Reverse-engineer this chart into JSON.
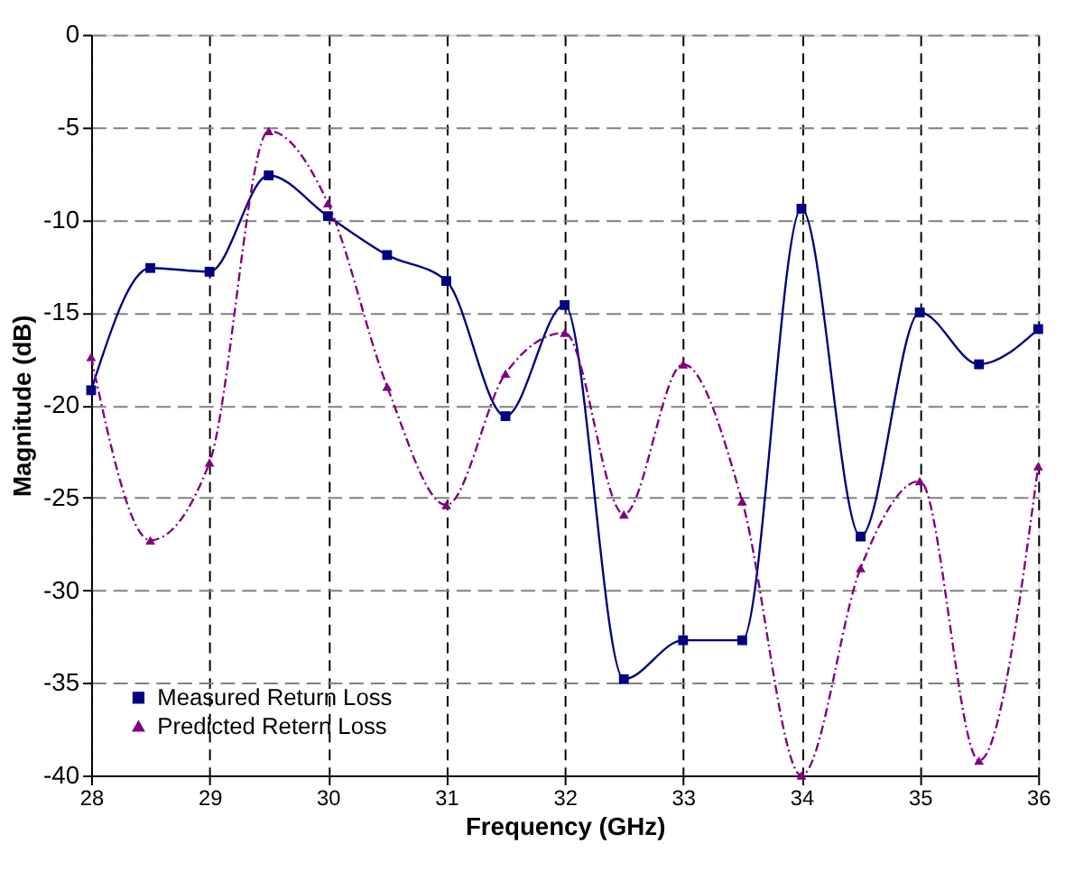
{
  "chart_data": {
    "type": "line",
    "xlabel": "Frequency (GHz)",
    "ylabel": "Magnitude (dB)",
    "x": [
      28,
      28.5,
      29,
      29.5,
      30,
      30.5,
      31,
      31.5,
      32,
      32.5,
      33,
      33.5,
      34,
      34.5,
      35,
      35.5,
      36
    ],
    "series": [
      {
        "name": "Measured Return Loss",
        "color": "#000080",
        "marker": "square",
        "line_style": "solid",
        "values": [
          -19.2,
          -12.6,
          -12.8,
          -7.6,
          -9.8,
          -11.9,
          -13.3,
          -20.6,
          -14.6,
          -34.8,
          -32.7,
          -32.7,
          -9.4,
          -27.1,
          -15.0,
          -17.8,
          -15.9
        ]
      },
      {
        "name": "Predicted Retern Loss",
        "color": "#800080",
        "marker": "triangle",
        "line_style": "dashed",
        "values": [
          -17.4,
          -27.3,
          -23.1,
          -5.2,
          -9.1,
          -19.0,
          -25.4,
          -18.3,
          -16.1,
          -25.9,
          -17.8,
          -25.2,
          -40,
          -28.8,
          -24.1,
          -39.2,
          -23.3
        ]
      }
    ],
    "xlim": [
      28,
      36
    ],
    "xticks": [
      28,
      29,
      30,
      31,
      32,
      33,
      34,
      35,
      36
    ],
    "ylim": [
      -40,
      0
    ],
    "yticks": [
      -40,
      -35,
      -30,
      -25,
      -20,
      -15,
      -10,
      -5,
      0
    ],
    "grid": true,
    "legend": "bottom left"
  }
}
